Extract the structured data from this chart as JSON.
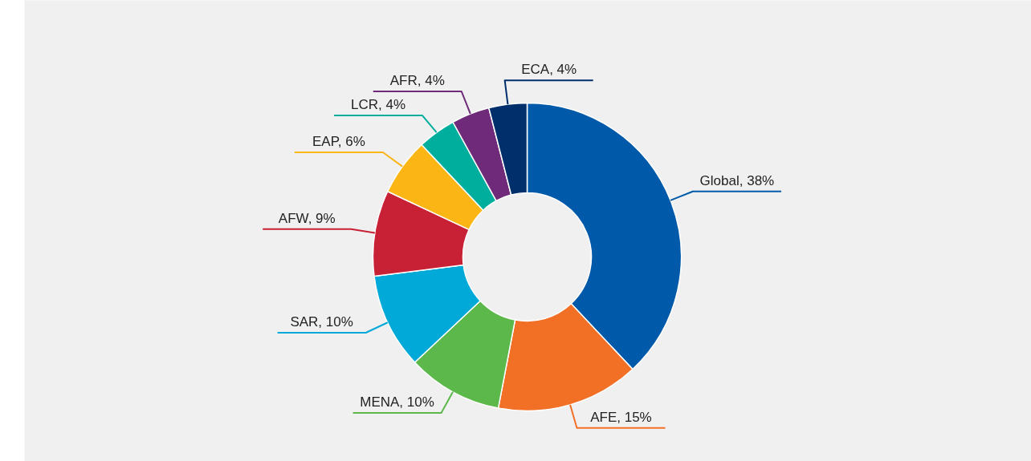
{
  "chart_data": {
    "type": "donut",
    "categories": [
      "Global",
      "AFE",
      "MENA",
      "SAR",
      "AFW",
      "EAP",
      "LCR",
      "AFR",
      "ECA"
    ],
    "values": [
      38,
      15,
      10,
      10,
      9,
      6,
      4,
      4,
      4
    ],
    "colors": [
      "#005aa9",
      "#f26f26",
      "#5cb84a",
      "#00a9d8",
      "#c82035",
      "#fbb515",
      "#00ae9d",
      "#6f2b7a",
      "#002f6c"
    ],
    "value_labels": [
      "38%",
      "15%",
      "10%",
      "10%",
      "9%",
      "6%",
      "4%",
      "4%",
      "4%"
    ]
  }
}
